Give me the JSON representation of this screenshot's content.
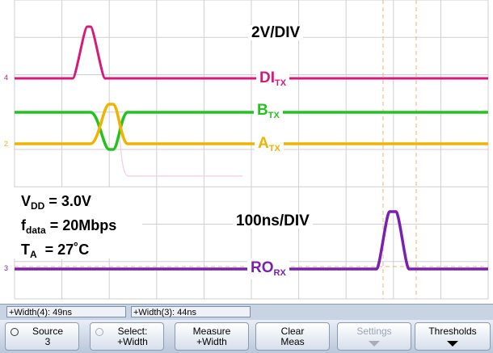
{
  "screen": {
    "vscale": "2V/DIV",
    "hscale": "100ns/DIV",
    "channels": [
      {
        "main": "DI",
        "sub": "TX",
        "color": "#d6197b",
        "marker": "4"
      },
      {
        "main": "B",
        "sub": "TX",
        "color": "#22c31e",
        "marker": ""
      },
      {
        "main": "A",
        "sub": "TX",
        "color": "#f0b400",
        "marker": "2"
      },
      {
        "main": "RO",
        "sub": "RX",
        "color": "#7a1fb2",
        "marker": "3"
      }
    ],
    "params": [
      {
        "main": "V",
        "sub": "DD",
        "rest": " = 3.0V"
      },
      {
        "main": "f",
        "sub": "data",
        "rest": " = 20Mbps"
      },
      {
        "main": "T",
        "sub": "A",
        "rest": "  = 27˚C"
      }
    ]
  },
  "measurements": [
    "+Width(4): 49ns",
    "+Width(3): 44ns"
  ],
  "softkeys": [
    {
      "line1": "Source",
      "line2": "3",
      "icon": "knob-icon",
      "enabled": true
    },
    {
      "line1": "Select:",
      "line2": "+Width",
      "icon": "knob-icon",
      "enabled": true
    },
    {
      "line1": "Measure",
      "line2": "+Width",
      "icon": "",
      "enabled": true
    },
    {
      "line1": "Clear",
      "line2": "Meas",
      "icon": "",
      "enabled": true
    },
    {
      "line1": "Settings",
      "line2": "",
      "icon": "arrow-down-icon",
      "enabled": false
    },
    {
      "line1": "Thresholds",
      "line2": "",
      "icon": "arrow-down-icon",
      "enabled": true
    }
  ]
}
